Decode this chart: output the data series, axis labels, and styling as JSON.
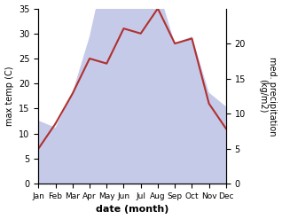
{
  "months": [
    "Jan",
    "Feb",
    "Mar",
    "Apr",
    "May",
    "Jun",
    "Jul",
    "Aug",
    "Sep",
    "Oct",
    "Nov",
    "Dec"
  ],
  "temperature": [
    7,
    12,
    18,
    25,
    24,
    31,
    30,
    35,
    28,
    29,
    16,
    11
  ],
  "precipitation": [
    9,
    8,
    13,
    21,
    32,
    35,
    34,
    28,
    20,
    21,
    13,
    11
  ],
  "temp_color": "#b03030",
  "precip_fill_color": "#c5cae8",
  "temp_ylim": [
    0,
    35
  ],
  "precip_ylim": [
    0,
    25
  ],
  "temp_yticks": [
    0,
    5,
    10,
    15,
    20,
    25,
    30,
    35
  ],
  "precip_yticks": [
    0,
    5,
    10,
    15,
    20
  ],
  "xlabel": "date (month)",
  "ylabel_left": "max temp (C)",
  "ylabel_right": "med. precipitation\n(kg/m2)",
  "background_color": "#ffffff"
}
